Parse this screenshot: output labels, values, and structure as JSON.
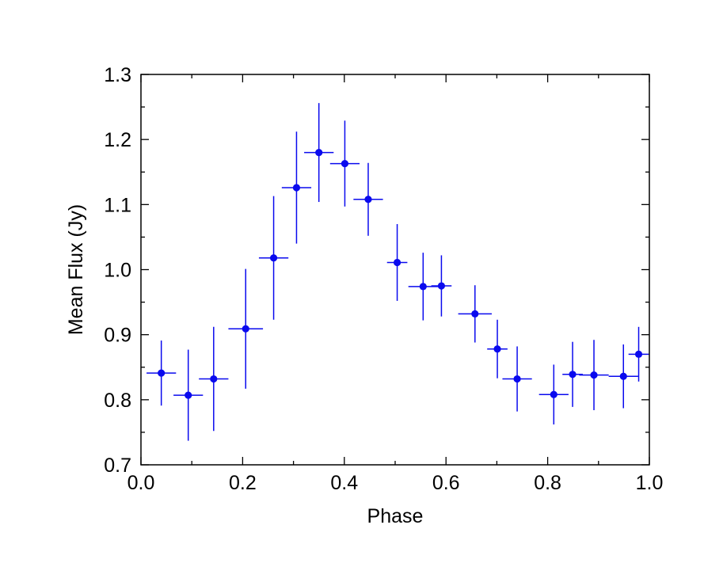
{
  "chart_data": {
    "type": "scatter",
    "title": "",
    "xlabel": "Phase",
    "ylabel": "Mean Flux (Jy)",
    "xlim": [
      0.0,
      1.0
    ],
    "ylim": [
      0.7,
      1.3
    ],
    "x_ticks": [
      "0.0",
      "0.2",
      "0.4",
      "0.6",
      "0.8",
      "1.0"
    ],
    "y_ticks": [
      "0.7",
      "0.8",
      "0.9",
      "1.0",
      "1.1",
      "1.2",
      "1.3"
    ],
    "grid": false,
    "legend": "none",
    "color": "#0a0aee",
    "series": [
      {
        "points": [
          {
            "x": 0.04,
            "y": 0.841,
            "xerr": 0.029,
            "yerr_low": 0.05,
            "yerr_high": 0.05
          },
          {
            "x": 0.093,
            "y": 0.807,
            "xerr": 0.029,
            "yerr_low": 0.07,
            "yerr_high": 0.07
          },
          {
            "x": 0.143,
            "y": 0.832,
            "xerr": 0.029,
            "yerr_low": 0.08,
            "yerr_high": 0.08
          },
          {
            "x": 0.206,
            "y": 0.909,
            "xerr": 0.034,
            "yerr_low": 0.092,
            "yerr_high": 0.092
          },
          {
            "x": 0.261,
            "y": 1.018,
            "xerr": 0.029,
            "yerr_low": 0.095,
            "yerr_high": 0.095
          },
          {
            "x": 0.306,
            "y": 1.126,
            "xerr": 0.029,
            "yerr_low": 0.086,
            "yerr_high": 0.086
          },
          {
            "x": 0.35,
            "y": 1.18,
            "xerr": 0.029,
            "yerr_low": 0.076,
            "yerr_high": 0.076
          },
          {
            "x": 0.401,
            "y": 1.163,
            "xerr": 0.029,
            "yerr_low": 0.066,
            "yerr_high": 0.066
          },
          {
            "x": 0.447,
            "y": 1.108,
            "xerr": 0.029,
            "yerr_low": 0.056,
            "yerr_high": 0.056
          },
          {
            "x": 0.504,
            "y": 1.011,
            "xerr": 0.02,
            "yerr_low": 0.059,
            "yerr_high": 0.059
          },
          {
            "x": 0.555,
            "y": 0.974,
            "xerr": 0.029,
            "yerr_low": 0.052,
            "yerr_high": 0.052
          },
          {
            "x": 0.591,
            "y": 0.975,
            "xerr": 0.02,
            "yerr_low": 0.047,
            "yerr_high": 0.047
          },
          {
            "x": 0.657,
            "y": 0.932,
            "xerr": 0.033,
            "yerr_low": 0.044,
            "yerr_high": 0.044
          },
          {
            "x": 0.701,
            "y": 0.878,
            "xerr": 0.02,
            "yerr_low": 0.045,
            "yerr_high": 0.045
          },
          {
            "x": 0.74,
            "y": 0.832,
            "xerr": 0.029,
            "yerr_low": 0.05,
            "yerr_high": 0.05
          },
          {
            "x": 0.812,
            "y": 0.808,
            "xerr": 0.029,
            "yerr_low": 0.046,
            "yerr_high": 0.046
          },
          {
            "x": 0.849,
            "y": 0.839,
            "xerr": 0.02,
            "yerr_low": 0.05,
            "yerr_high": 0.05
          },
          {
            "x": 0.891,
            "y": 0.838,
            "xerr": 0.029,
            "yerr_low": 0.054,
            "yerr_high": 0.054
          },
          {
            "x": 0.949,
            "y": 0.836,
            "xerr": 0.029,
            "yerr_low": 0.049,
            "yerr_high": 0.049
          },
          {
            "x": 0.979,
            "y": 0.87,
            "xerr": 0.02,
            "yerr_low": 0.042,
            "yerr_high": 0.042
          }
        ]
      }
    ]
  }
}
